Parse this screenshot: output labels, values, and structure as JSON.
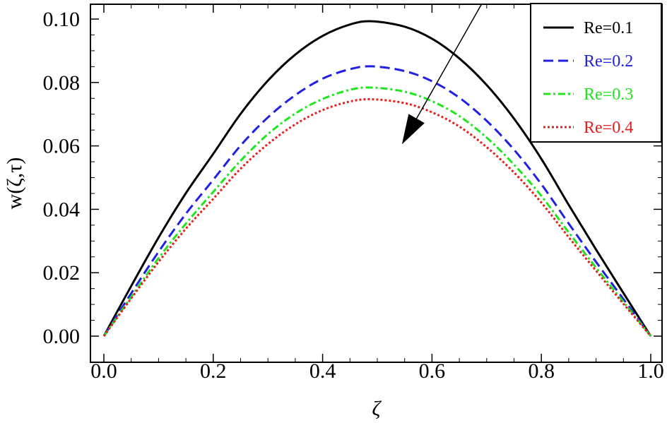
{
  "chart_data": {
    "type": "line",
    "title": "",
    "xlabel": "ζ",
    "ylabel": "w(ζ,τ)",
    "xlim": [
      0,
      1
    ],
    "ylim": [
      0,
      0.104
    ],
    "xticks": [
      0.0,
      0.2,
      0.4,
      0.6,
      0.8,
      1.0
    ],
    "xtick_labels": [
      "0.0",
      "0.2",
      "0.4",
      "0.6",
      "0.8",
      "1.0"
    ],
    "yticks": [
      0.0,
      0.02,
      0.04,
      0.06,
      0.08,
      0.1
    ],
    "ytick_labels": [
      "0.00",
      "0.02",
      "0.04",
      "0.06",
      "0.08",
      "0.10"
    ],
    "grid": false,
    "legend_position": "top-right",
    "x": [
      0.0,
      0.05,
      0.1,
      0.15,
      0.2,
      0.25,
      0.3,
      0.35,
      0.4,
      0.45,
      0.49,
      0.55,
      0.6,
      0.65,
      0.7,
      0.75,
      0.8,
      0.85,
      0.9,
      0.95,
      1.0
    ],
    "series": [
      {
        "name": "Re=0.1",
        "color": "#000000",
        "dash": "solid",
        "values": [
          0.0,
          0.0158,
          0.0311,
          0.0451,
          0.0575,
          0.0701,
          0.0806,
          0.0888,
          0.0947,
          0.0983,
          0.0993,
          0.0976,
          0.0938,
          0.0876,
          0.0792,
          0.0686,
          0.0559,
          0.0414,
          0.0273,
          0.0136,
          0.0
        ]
      },
      {
        "name": "Re=0.2",
        "color": "#1f1fe6",
        "dash": "dashed",
        "values": [
          0.0,
          0.0135,
          0.0266,
          0.0386,
          0.0493,
          0.0601,
          0.069,
          0.076,
          0.0812,
          0.0842,
          0.0851,
          0.0836,
          0.0804,
          0.0752,
          0.0679,
          0.0588,
          0.0479,
          0.0355,
          0.0234,
          0.0117,
          0.0
        ]
      },
      {
        "name": "Re=0.3",
        "color": "#1fe61f",
        "dash": "dashdot",
        "values": [
          0.0,
          0.0124,
          0.0246,
          0.0355,
          0.0455,
          0.0553,
          0.0637,
          0.0702,
          0.0748,
          0.0777,
          0.0784,
          0.0771,
          0.0741,
          0.0694,
          0.0626,
          0.0541,
          0.0442,
          0.0327,
          0.0216,
          0.0108,
          0.0
        ]
      },
      {
        "name": "Re=0.4",
        "color": "#e61f1f",
        "dash": "dotted",
        "values": [
          0.0,
          0.0119,
          0.0234,
          0.0339,
          0.0433,
          0.0528,
          0.0606,
          0.0668,
          0.0713,
          0.074,
          0.0747,
          0.0735,
          0.0706,
          0.0661,
          0.0596,
          0.0516,
          0.0421,
          0.0312,
          0.0206,
          0.0102,
          0.0
        ]
      }
    ],
    "annotations": [
      {
        "type": "arrow",
        "from": [
          0.69,
          0.1045
        ],
        "to": [
          0.545,
          0.0605
        ],
        "color": "#000000"
      }
    ]
  }
}
